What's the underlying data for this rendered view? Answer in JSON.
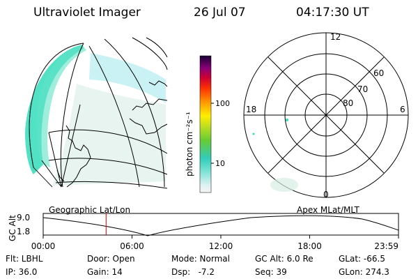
{
  "header": {
    "title": "Ultraviolet Imager",
    "date": "26 Jul 07",
    "time": "04:17:30 UT"
  },
  "colorbar": {
    "unit_label": "photon cm⁻²s⁻¹",
    "ticks": [
      "100",
      "10"
    ]
  },
  "globe": {
    "caption": "Geographic Lat/Lon"
  },
  "polar": {
    "caption": "Apex MLat/MLT",
    "mlt_labels": {
      "top": "12",
      "bottom": "0",
      "left": "18",
      "right": "6"
    },
    "lat_labels": [
      "60",
      "70",
      "80"
    ]
  },
  "timeline": {
    "axis_title": "GC Alt",
    "y_ticks": [
      "9.0",
      "1.8"
    ],
    "x_ticks": [
      "00:00",
      "06:00",
      "12:00",
      "18:00",
      "23:59"
    ],
    "current_time_fraction": 0.177
  },
  "info": {
    "filter": "Flt: LBHL",
    "ip": "IP: 36.0",
    "door": "Door: Open",
    "gain": "Gain: 14",
    "mode": "Mode: Normal",
    "dsp": "Dsp:   -7.2",
    "gc_alt": "GC Alt: 6.0 Re",
    "seq": "Seq: 39",
    "glat": "GLat: -66.5",
    "glon": "GLon: 274.3"
  },
  "colors": {
    "marker": "#cc0000",
    "aurora_bright": "#33ddbb",
    "aurora_dim": "#b8eef0",
    "aurora_faint": "#d8ece4"
  }
}
